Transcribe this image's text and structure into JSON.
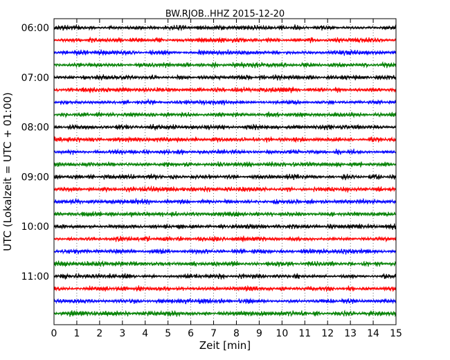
{
  "chart_data": {
    "type": "line",
    "title": "BW.RJOB..HHZ 2015-12-20",
    "xlabel": "Zeit  [min]",
    "ylabel": "UTC (Lokalzeit = UTC + 01:00)",
    "xlim": [
      0,
      15
    ],
    "x_ticks": [
      "0",
      "1",
      "2",
      "3",
      "4",
      "5",
      "6",
      "7",
      "8",
      "9",
      "10",
      "11",
      "12",
      "13",
      "14",
      "15"
    ],
    "y_tick_labels": [
      "06:00",
      "07:00",
      "08:00",
      "09:00",
      "10:00",
      "11:00"
    ],
    "rows_per_hour": 4,
    "row_minutes": 15,
    "row_count": 24,
    "row_start_times": [
      "06:00",
      "06:15",
      "06:30",
      "06:45",
      "07:00",
      "07:15",
      "07:30",
      "07:45",
      "08:00",
      "08:15",
      "08:30",
      "08:45",
      "09:00",
      "09:15",
      "09:30",
      "09:45",
      "10:00",
      "10:15",
      "10:30",
      "10:45",
      "11:00",
      "11:15",
      "11:30",
      "11:45"
    ],
    "series_colors": [
      "#000000",
      "#ff0000",
      "#0000ff",
      "#008000"
    ],
    "grid": "vertical dotted at each minute",
    "legend": "none"
  }
}
